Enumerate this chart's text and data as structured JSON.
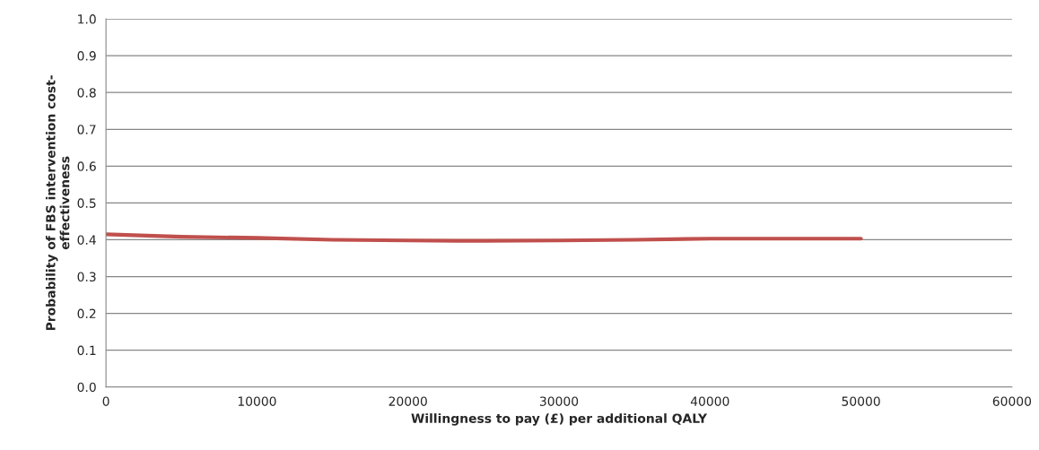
{
  "chart_data": {
    "type": "line",
    "xlabel": "Willingness to pay (£) per additional QALY",
    "ylabel": "Probability of FBS intervention cost-\neffectiveness",
    "x": [
      0,
      5000,
      10000,
      15000,
      20000,
      25000,
      30000,
      35000,
      40000,
      45000,
      50000
    ],
    "series": [
      {
        "color": "#c0504d",
        "values": [
          0.415,
          0.408,
          0.405,
          0.4,
          0.398,
          0.397,
          0.398,
          0.4,
          0.403,
          0.403,
          0.403
        ]
      }
    ],
    "xlim": [
      0,
      60000
    ],
    "xticks": [
      0,
      10000,
      20000,
      30000,
      40000,
      50000,
      60000
    ],
    "ylim": [
      0,
      1.0
    ],
    "yticks": [
      {
        "value": 0,
        "label": "0.0"
      },
      0.1,
      0.2,
      0.3,
      0.4,
      0.5,
      0.6,
      0.7,
      0.8,
      0.9,
      {
        "value": 1.0,
        "label": "1.0"
      }
    ],
    "grid": "y",
    "marker": "none",
    "line_style": "solid"
  }
}
